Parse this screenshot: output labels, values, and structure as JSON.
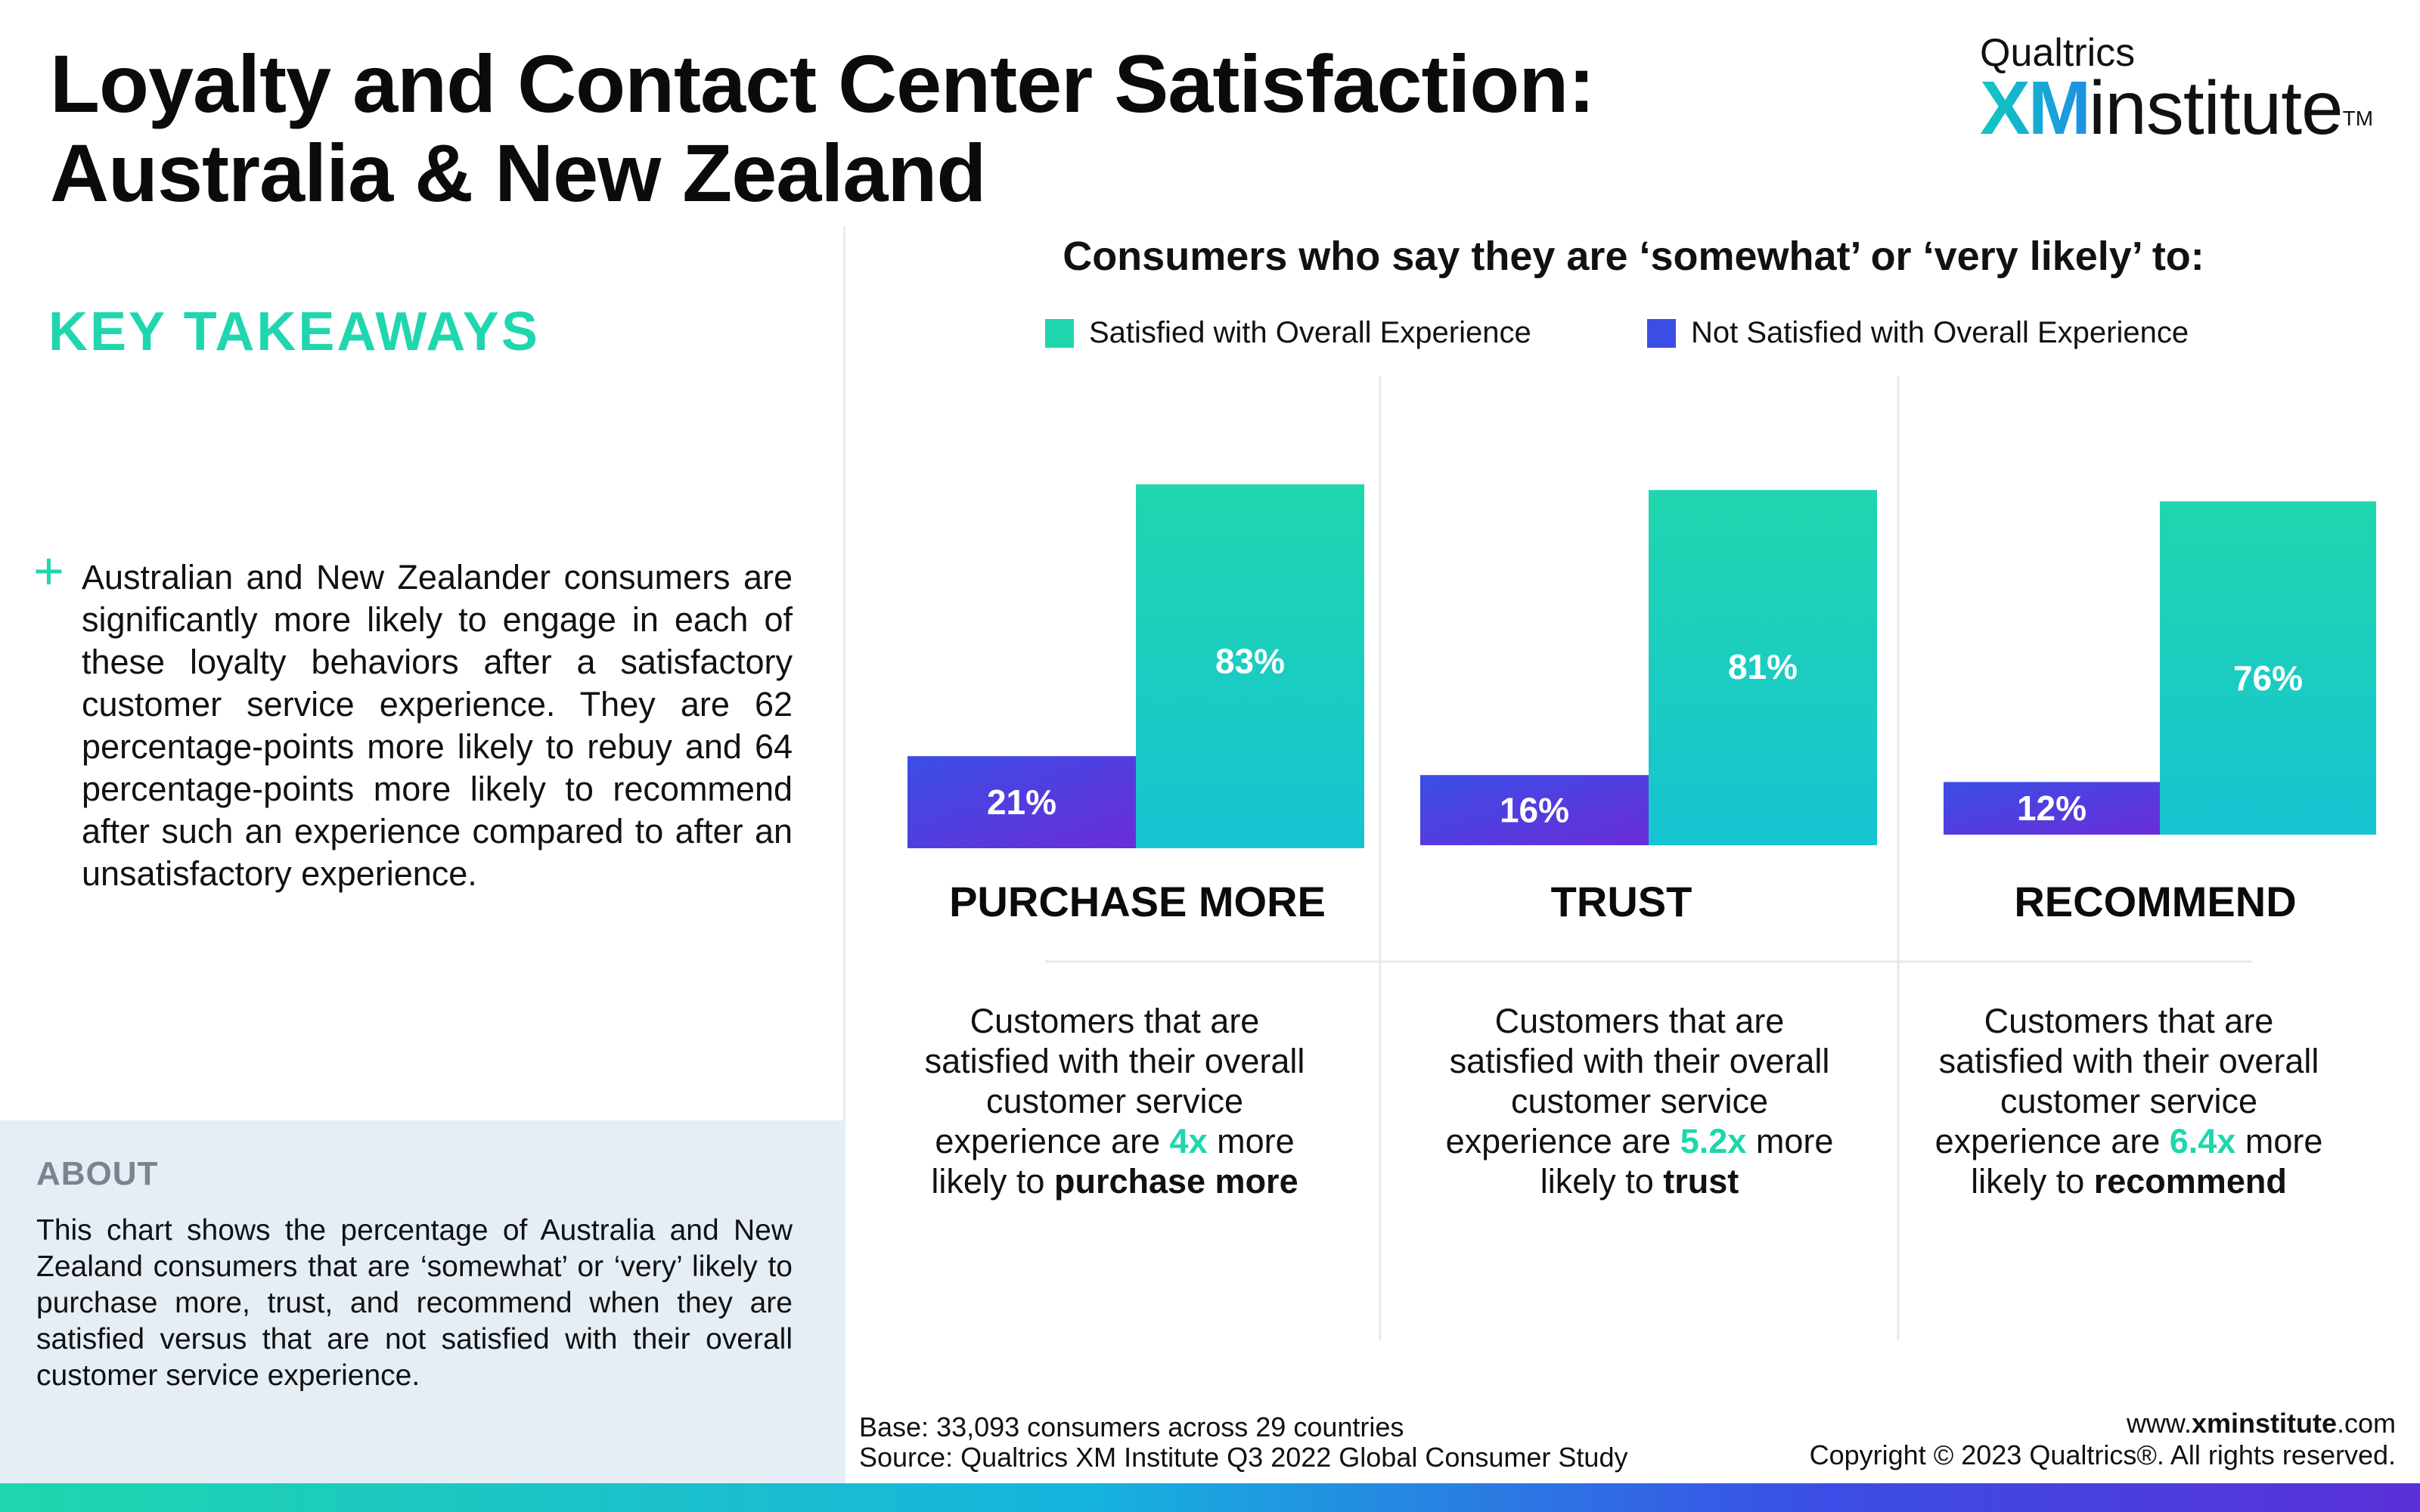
{
  "header": {
    "title": "Loyalty and Contact Center Satisfaction: Australia & New Zealand",
    "brand_top": "Qualtrics",
    "brand_xm": "XM",
    "brand_institute": "institute",
    "brand_tm": "TM"
  },
  "takeaways": {
    "title": "KEY TAKEAWAYS",
    "bullet_marker": "+",
    "text": "Australian and New Zealander consumers are significantly more likely to engage in each of these loyalty behaviors after a satisfactory customer service experience. They are 62 percentage-points more likely to rebuy and 64 percentage-points more likely to recommend after such an experience compared to after an unsatisfactory experience."
  },
  "about": {
    "title": "ABOUT",
    "text": "This chart shows the percentage of Australia and New Zealand consumers that are ‘somewhat’ or ‘very’ likely to purchase more, trust, and recommend when they are satisfied versus that are not satisfied with their overall customer service experience."
  },
  "colors": {
    "satisfied_start": "#1fd6ae",
    "satisfied_end": "#16c4d2",
    "not_satisfied_start": "#3a4ee6",
    "not_satisfied_end": "#6a2dd8",
    "accent": "#1fd6ae"
  },
  "chart_data": {
    "type": "bar",
    "title": "Consumers who say they are ‘somewhat’ or ‘very likely’ to:",
    "categories": [
      "PURCHASE MORE",
      "TRUST",
      "RECOMMEND"
    ],
    "series": [
      {
        "name": "Not Satisfied with Overall Experience",
        "values": [
          21,
          16,
          12
        ],
        "labels": [
          "21%",
          "16%",
          "12%"
        ]
      },
      {
        "name": "Satisfied with Overall Experience",
        "values": [
          83,
          81,
          76
        ],
        "labels": [
          "83%",
          "81%",
          "76%"
        ]
      }
    ],
    "legend": [
      "Satisfied with Overall Experience",
      "Not Satisfied with Overall Experience"
    ],
    "legend_position": "top",
    "ylim": [
      0,
      100
    ],
    "grid": false
  },
  "descriptions": [
    {
      "pre": "Customers that are satisfied with their overall customer service experience are ",
      "mult": "4x",
      "mid": " more likely to ",
      "action": "purchase more"
    },
    {
      "pre": "Customers that are satisfied with their overall customer service experience are ",
      "mult": "5.2x",
      "mid": " more likely to ",
      "action": "trust"
    },
    {
      "pre": "Customers that are satisfied with their overall customer service experience are ",
      "mult": "6.4x",
      "mid": " more likely to ",
      "action": "recommend"
    }
  ],
  "footer": {
    "base": "Base: 33,093 consumers across 29 countries",
    "source": "Source: Qualtrics XM Institute Q3 2022 Global Consumer Study",
    "url_prefix": "www.",
    "url_bold": "xminstitute",
    "url_suffix": ".com",
    "copyright": "Copyright © 2023 Qualtrics®. All rights reserved."
  }
}
